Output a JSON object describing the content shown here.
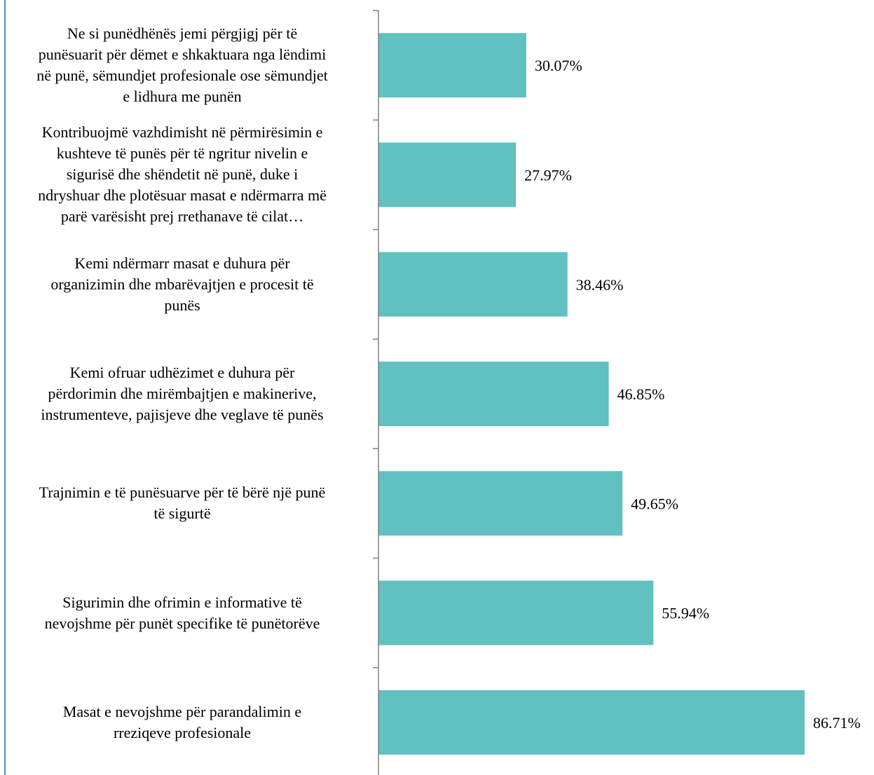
{
  "chart_data": {
    "type": "bar",
    "orientation": "horizontal",
    "categories": [
      "Ne si punëdhënës jemi përgjigj për të punësuarit për dëmet e shkaktuara nga lëndimi në punë, sëmundjet profesionale ose sëmundjet e lidhura me punën",
      "Kontribuojmë vazhdimisht në përmirësimin e kushteve të punës për të ngritur nivelin e sigurisë dhe shëndetit në punë, duke i ndryshuar dhe plotësuar masat e ndërmarra më parë varësisht prej rrethanave të cilat…",
      "Kemi ndërmarr masat e duhura për organizimin dhe mbarëvajtjen e procesit të punës",
      "Kemi ofruar udhëzimet e duhura për përdorimin dhe mirëmbajtjen e makinerive, instrumenteve, pajisjeve dhe veglave të punës",
      "Trajnimin e të punësuarve për të bërë një punë të sigurtë",
      "Sigurimin dhe ofrimin e informative të nevojshme për punët specifike të punëtorëve",
      "Masat e nevojshme për parandalimin e rreziqeve profesionale"
    ],
    "label_lines": [
      [
        "Ne si punëdhënës jemi përgjigj për të",
        "punësuarit për dëmet e shkaktuara nga lëndimi",
        "në punë, sëmundjet profesionale ose sëmundjet",
        "e lidhura me punën"
      ],
      [
        "Kontribuojmë vazhdimisht në përmirësimin e",
        "kushteve të punës për të ngritur nivelin e",
        "sigurisë dhe shëndetit në punë, duke i",
        "ndryshuar dhe plotësuar masat e ndërmarra më",
        "parë varësisht prej rrethanave të cilat…"
      ],
      [
        "Kemi ndërmarr masat e duhura për",
        "organizimin dhe mbarëvajtjen e procesit të",
        "punës"
      ],
      [
        "Kemi ofruar udhëzimet e duhura për",
        "përdorimin dhe mirëmbajtjen e makinerive,",
        "instrumenteve, pajisjeve dhe veglave të punës"
      ],
      [
        "Trajnimin e të punësuarve për të bërë një punë",
        "të sigurtë"
      ],
      [
        "Sigurimin dhe ofrimin e informative të",
        "nevojshme për punët specifike të punëtorëve"
      ],
      [
        "Masat e nevojshme për parandalimin e",
        "rreziqeve profesionale"
      ]
    ],
    "values": [
      30.07,
      27.97,
      38.46,
      46.85,
      49.65,
      55.94,
      86.71
    ],
    "value_labels": [
      "30.07%",
      "27.97%",
      "38.46%",
      "46.85%",
      "49.65%",
      "55.94%",
      "86.71%"
    ],
    "unit": "%",
    "xlim": [
      0,
      100
    ],
    "grid": false,
    "legend": "none",
    "bar_color": "#60c1c0",
    "axis_color": "#808080"
  }
}
